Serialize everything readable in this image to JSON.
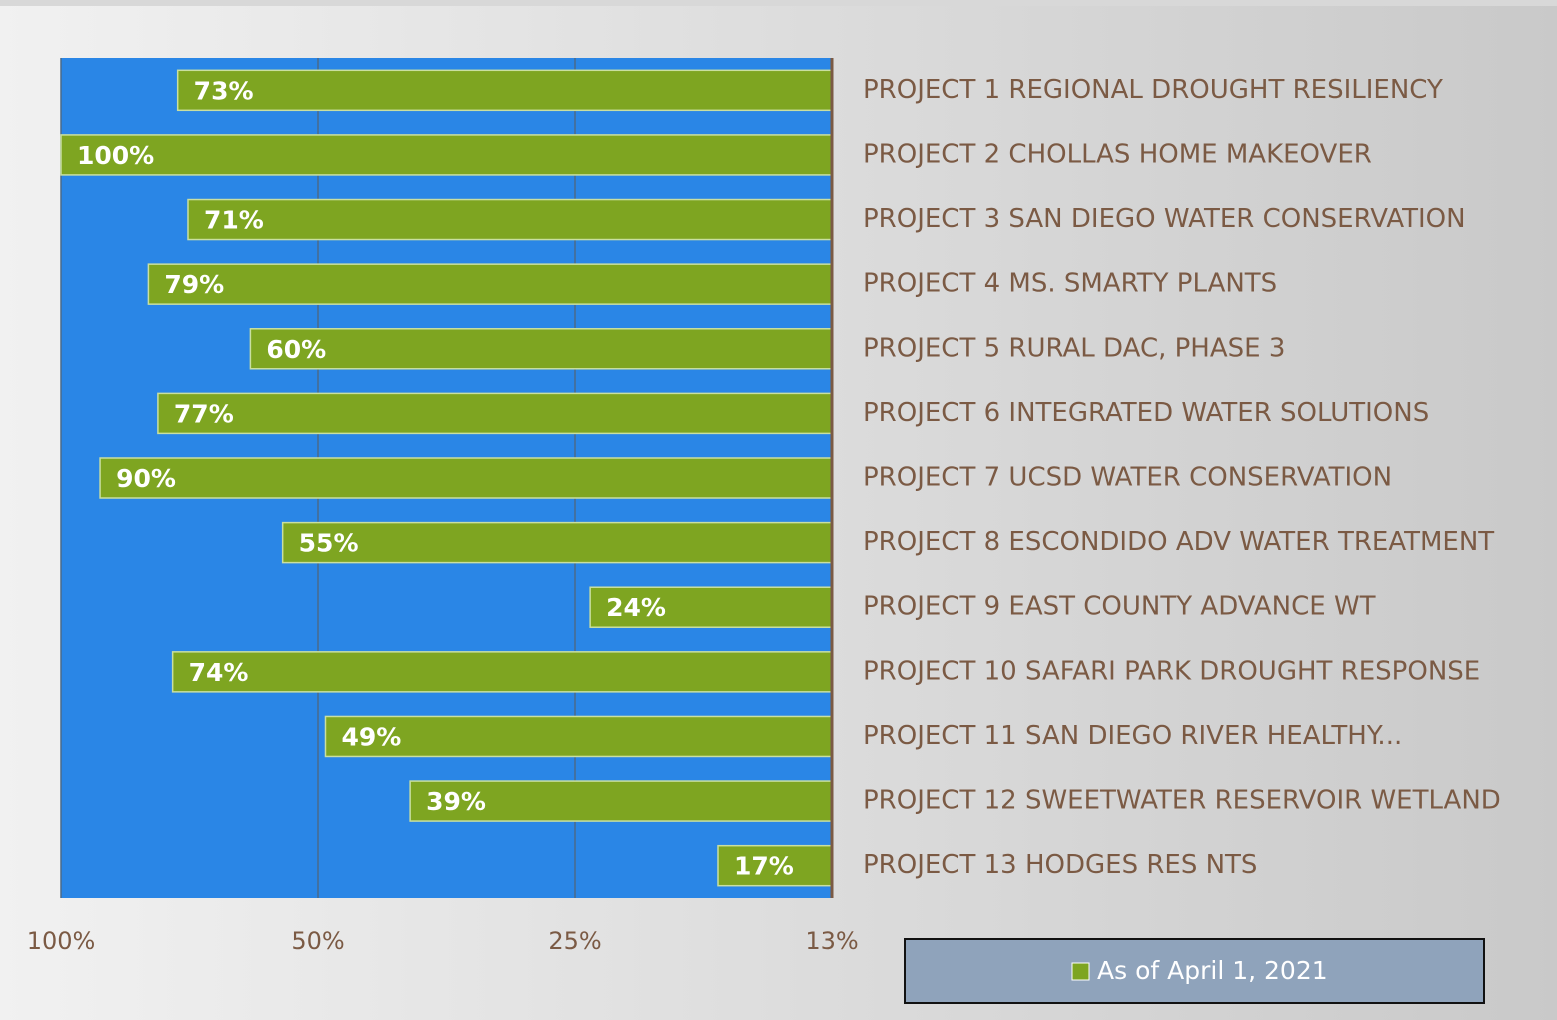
{
  "chart_data": {
    "type": "bar",
    "orientation": "horizontal",
    "categories": [
      "PROJECT 1 REGIONAL DROUGHT RESILIENCY",
      "PROJECT 2 CHOLLAS HOME MAKEOVER",
      "PROJECT 3 SAN DIEGO WATER CONSERVATION",
      "PROJECT 4 MS. SMARTY PLANTS",
      "PROJECT 5 RURAL DAC, PHASE 3",
      "PROJECT 6 INTEGRATED WATER SOLUTIONS",
      "PROJECT 7 UCSD WATER CONSERVATION",
      "PROJECT 8 ESCONDIDO ADV WATER TREATMENT",
      "PROJECT 9 EAST COUNTY ADVANCE WT",
      "PROJECT 10 SAFARI PARK DROUGHT RESPONSE",
      "PROJECT 11 SAN DIEGO RIVER HEALTHY...",
      "PROJECT 12 SWEETWATER RESERVOIR WETLAND",
      "PROJECT 13 HODGES RES NTS"
    ],
    "series": [
      {
        "name": "As of April 1, 2021",
        "color": "#7ea521",
        "values": [
          73,
          100,
          71,
          79,
          60,
          77,
          90,
          55,
          24,
          74,
          49,
          39,
          17
        ],
        "value_labels": [
          "73%",
          "100%",
          "71%",
          "79%",
          "60%",
          "77%",
          "90%",
          "55%",
          "24%",
          "74%",
          "49%",
          "39%",
          "17%"
        ]
      }
    ],
    "xscale": "log",
    "xlim": [
      100,
      12.5
    ],
    "xticks": [
      {
        "value": 100,
        "label": "100%"
      },
      {
        "value": 50,
        "label": "50%"
      },
      {
        "value": 25,
        "label": "25%"
      },
      {
        "value": 12.5,
        "label": "13%"
      }
    ],
    "grid": true,
    "plot_background": "#2a86e6",
    "legend": "bottom-right"
  }
}
